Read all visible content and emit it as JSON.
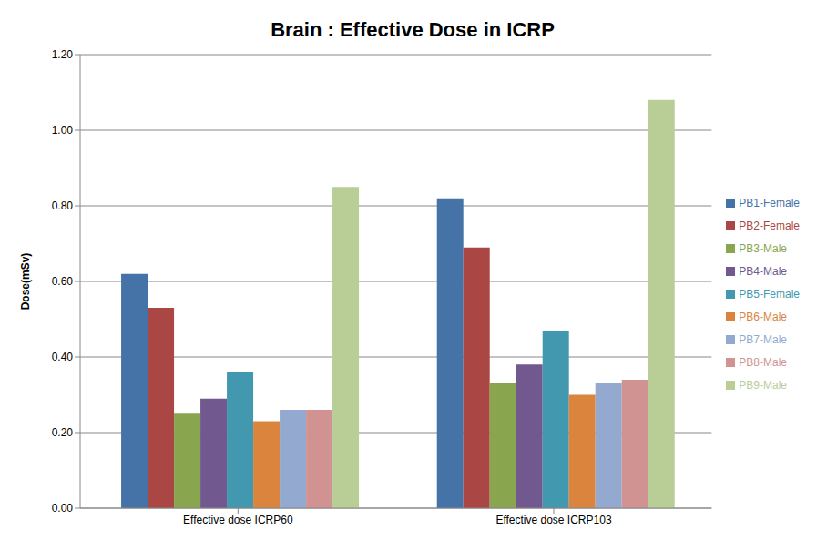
{
  "chart_data": {
    "type": "bar",
    "title": "Brain : Effective Dose in ICRP",
    "y_label": "Dose(mSv)",
    "categories": [
      "Effective dose ICRP60",
      "Effective dose ICRP103"
    ],
    "series": [
      {
        "name": "PB1-Female",
        "color": "#4572A7",
        "values": [
          0.62,
          0.82
        ]
      },
      {
        "name": "PB2-Female",
        "color": "#AA4643",
        "values": [
          0.53,
          0.69
        ]
      },
      {
        "name": "PB3-Male",
        "color": "#89A54E",
        "values": [
          0.25,
          0.33
        ]
      },
      {
        "name": "PB4-Male",
        "color": "#71588F",
        "values": [
          0.29,
          0.38
        ]
      },
      {
        "name": "PB5-Female",
        "color": "#4198AF",
        "values": [
          0.36,
          0.47
        ]
      },
      {
        "name": "PB6-Male",
        "color": "#DB843D",
        "values": [
          0.23,
          0.3
        ]
      },
      {
        "name": "PB7-Male",
        "color": "#93A9CF",
        "values": [
          0.26,
          0.33
        ]
      },
      {
        "name": "PB8-Male",
        "color": "#D19392",
        "values": [
          0.26,
          0.34
        ]
      },
      {
        "name": "PB9-Male",
        "color": "#B9CD96",
        "values": [
          0.85,
          1.08
        ]
      }
    ],
    "ylim": [
      0,
      1.2
    ],
    "yticks": [
      {
        "value": 0,
        "label": "0.00"
      },
      {
        "value": 0.2,
        "label": "0.20"
      },
      {
        "value": 0.4,
        "label": "0.40"
      },
      {
        "value": 0.6,
        "label": "0.60"
      },
      {
        "value": 0.8,
        "label": "0.80"
      },
      {
        "value": 1.0,
        "label": "1.00"
      },
      {
        "value": 1.2,
        "label": "1.20"
      }
    ],
    "grid": true,
    "legend": "right"
  }
}
